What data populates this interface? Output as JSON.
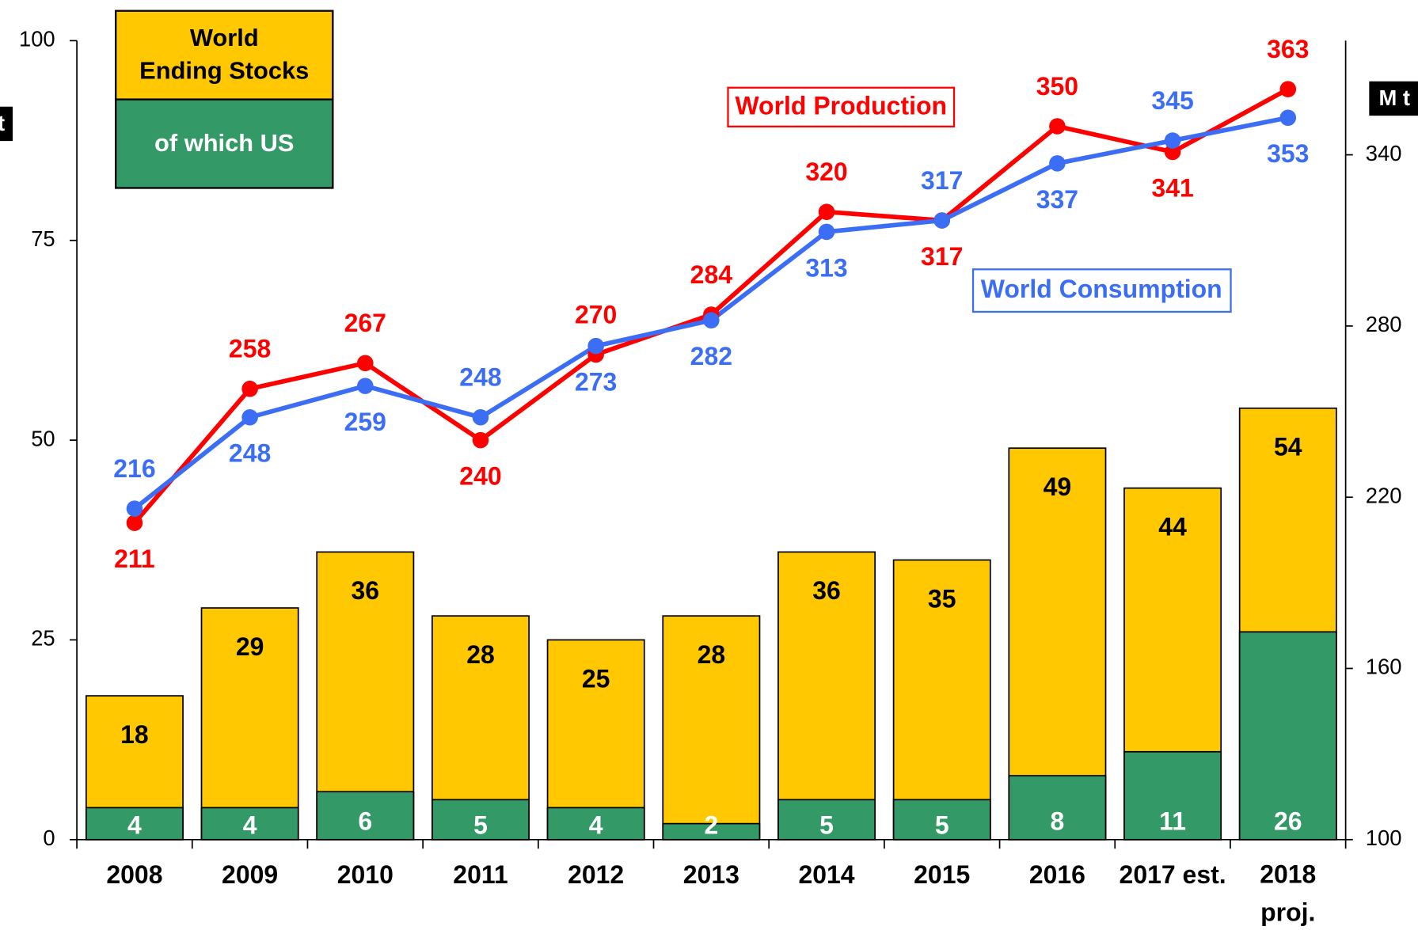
{
  "chart_data": {
    "type": "bar",
    "categories": [
      "2008",
      "2009",
      "2010",
      "2011",
      "2012",
      "2013",
      "2014",
      "2015",
      "2016",
      "2017 est.",
      "2018\nproj."
    ],
    "ylim": [
      0,
      100
    ],
    "yticks": [
      0,
      25,
      50,
      75,
      100
    ],
    "y_label": "M t",
    "y2lim": [
      100,
      380
    ],
    "y2ticks": [
      100,
      160,
      220,
      280,
      340
    ],
    "y2_label": "M t",
    "series": [
      {
        "name": "World\nEnding Stocks",
        "color": "#ffc800",
        "type": "bar",
        "values": [
          18,
          29,
          36,
          28,
          25,
          28,
          36,
          35,
          49,
          44,
          54
        ]
      },
      {
        "name": "of which US",
        "color": "#339966",
        "type": "bar",
        "values": [
          4,
          4,
          6,
          5,
          4,
          2,
          5,
          5,
          8,
          11,
          26
        ]
      },
      {
        "name": "World Production",
        "color": "#ff0000",
        "type": "line",
        "axis": "y2",
        "values": [
          211,
          258,
          267,
          240,
          270,
          284,
          320,
          317,
          350,
          341,
          363
        ]
      },
      {
        "name": "World Consumption",
        "color": "#3b6ef5",
        "type": "line",
        "axis": "y2",
        "values": [
          216,
          248,
          259,
          248,
          273,
          282,
          313,
          317,
          337,
          345,
          353
        ]
      }
    ]
  }
}
